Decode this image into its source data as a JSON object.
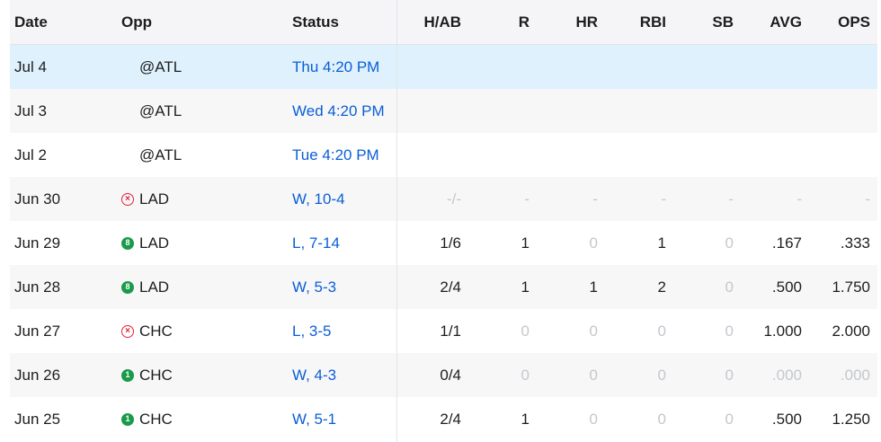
{
  "columns": {
    "date": "Date",
    "opp": "Opp",
    "status": "Status",
    "hab": "H/AB",
    "r": "R",
    "hr": "HR",
    "rbi": "RBI",
    "sb": "SB",
    "avg": "AVG",
    "ops": "OPS"
  },
  "rows": [
    {
      "date": "Jul 4",
      "opp": "@ATL",
      "result": "none",
      "result_icon": "",
      "status": "Thu 4:20 PM",
      "hab": "",
      "r": "",
      "hr": "",
      "rbi": "",
      "sb": "",
      "avg": "",
      "ops": ""
    },
    {
      "date": "Jul 3",
      "opp": "@ATL",
      "result": "none",
      "result_icon": "",
      "status": "Wed 4:20 PM",
      "hab": "",
      "r": "",
      "hr": "",
      "rbi": "",
      "sb": "",
      "avg": "",
      "ops": ""
    },
    {
      "date": "Jul 2",
      "opp": "@ATL",
      "result": "none",
      "result_icon": "",
      "status": "Tue 4:20 PM",
      "hab": "",
      "r": "",
      "hr": "",
      "rbi": "",
      "sb": "",
      "avg": "",
      "ops": ""
    },
    {
      "date": "Jun 30",
      "opp": "LAD",
      "result": "loss",
      "result_icon": "⊗",
      "status": "W, 10-4",
      "hab": "-/-",
      "r": "-",
      "hr": "-",
      "rbi": "-",
      "sb": "-",
      "avg": "-",
      "ops": "-"
    },
    {
      "date": "Jun 29",
      "opp": "LAD",
      "result": "win",
      "result_icon": "8",
      "status": "L, 7-14",
      "hab": "1/6",
      "r": "1",
      "hr": "0",
      "rbi": "1",
      "sb": "0",
      "avg": ".167",
      "ops": ".333"
    },
    {
      "date": "Jun 28",
      "opp": "LAD",
      "result": "win",
      "result_icon": "8",
      "status": "W, 5-3",
      "hab": "2/4",
      "r": "1",
      "hr": "1",
      "rbi": "2",
      "sb": "0",
      "avg": ".500",
      "ops": "1.750"
    },
    {
      "date": "Jun 27",
      "opp": "CHC",
      "result": "loss",
      "result_icon": "⊗",
      "status": "L, 3-5",
      "hab": "1/1",
      "r": "0",
      "hr": "0",
      "rbi": "0",
      "sb": "0",
      "avg": "1.000",
      "ops": "2.000"
    },
    {
      "date": "Jun 26",
      "opp": "CHC",
      "result": "win",
      "result_icon": "1",
      "status": "W, 4-3",
      "hab": "0/4",
      "r": "0",
      "hr": "0",
      "rbi": "0",
      "sb": "0",
      "avg": ".000",
      "ops": ".000"
    },
    {
      "date": "Jun 25",
      "opp": "CHC",
      "result": "win",
      "result_icon": "1",
      "status": "W, 5-1",
      "hab": "2/4",
      "r": "1",
      "hr": "0",
      "rbi": "0",
      "sb": "0",
      "avg": ".500",
      "ops": "1.250"
    }
  ],
  "muted_cells": [
    [
      3,
      "hab"
    ],
    [
      3,
      "r"
    ],
    [
      3,
      "hr"
    ],
    [
      3,
      "rbi"
    ],
    [
      3,
      "sb"
    ],
    [
      3,
      "avg"
    ],
    [
      3,
      "ops"
    ],
    [
      4,
      "hr"
    ],
    [
      4,
      "sb"
    ],
    [
      5,
      "sb"
    ],
    [
      6,
      "r"
    ],
    [
      6,
      "hr"
    ],
    [
      6,
      "rbi"
    ],
    [
      6,
      "sb"
    ],
    [
      7,
      "r"
    ],
    [
      7,
      "hr"
    ],
    [
      7,
      "rbi"
    ],
    [
      7,
      "sb"
    ],
    [
      7,
      "avg"
    ],
    [
      7,
      "ops"
    ],
    [
      8,
      "hr"
    ],
    [
      8,
      "rbi"
    ],
    [
      8,
      "sb"
    ]
  ],
  "colors": {
    "link": "#0a5ed7",
    "highlight_row": "#dff1fc",
    "win_badge": "#1a9b4b",
    "loss_badge": "#e0223b",
    "muted": "#c4c7cc"
  }
}
